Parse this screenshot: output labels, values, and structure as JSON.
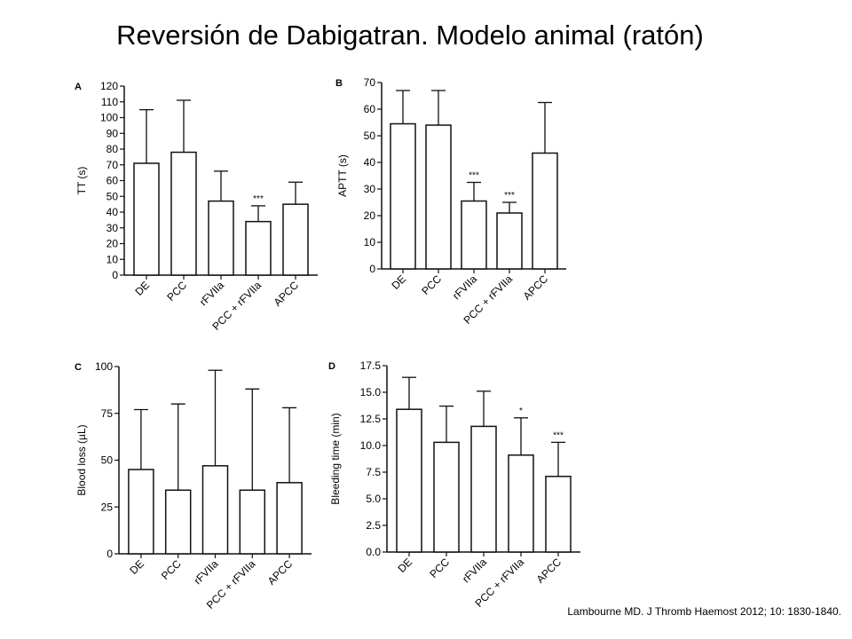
{
  "slide": {
    "title": "Reversión de Dabigatran. Modelo animal (ratón)",
    "citation": "Lambourne MD. J Thromb Haemost 2012; 10: 1830-1840."
  },
  "chart_data": [
    {
      "panel": "A",
      "type": "bar",
      "ylabel": "TT (s)",
      "xlabel": "",
      "ylim": [
        0,
        120
      ],
      "yticks": [
        0,
        10,
        20,
        30,
        40,
        50,
        60,
        70,
        80,
        90,
        100,
        110,
        120
      ],
      "categories": [
        "DE",
        "PCC",
        "rFVIIa",
        "PCC + rFVIIa",
        "APCC"
      ],
      "values": [
        71,
        78,
        47,
        34,
        45
      ],
      "errors": [
        105,
        111,
        66,
        44,
        59
      ],
      "annotations": [
        "",
        "",
        "",
        "***",
        ""
      ],
      "grid": false
    },
    {
      "panel": "B",
      "type": "bar",
      "ylabel": "APTT (s)",
      "xlabel": "",
      "ylim": [
        0,
        70
      ],
      "yticks": [
        0,
        10,
        20,
        30,
        40,
        50,
        60,
        70
      ],
      "categories": [
        "DE",
        "PCC",
        "rFVIIa",
        "PCC + rFVIIa",
        "APCC"
      ],
      "values": [
        54.5,
        54,
        25.5,
        21,
        43.5
      ],
      "errors": [
        67,
        67,
        32.5,
        25,
        62.5
      ],
      "annotations": [
        "",
        "",
        "***",
        "***",
        ""
      ],
      "grid": false
    },
    {
      "panel": "C",
      "type": "bar",
      "ylabel": "Blood loss (µL)",
      "xlabel": "",
      "ylim": [
        0,
        100
      ],
      "yticks": [
        0,
        25,
        50,
        75,
        100
      ],
      "categories": [
        "DE",
        "PCC",
        "rFVIIa",
        "PCC + rFVIIa",
        "APCC"
      ],
      "values": [
        45,
        34,
        47,
        34,
        38
      ],
      "errors": [
        77,
        80,
        98,
        88,
        78
      ],
      "annotations": [
        "",
        "",
        "",
        "",
        ""
      ],
      "grid": false
    },
    {
      "panel": "D",
      "type": "bar",
      "ylabel": "Bleeding time (min)",
      "xlabel": "",
      "ylim": [
        0,
        17.5
      ],
      "yticks": [
        "0.0",
        "2.5",
        "5.0",
        "7.5",
        "10.0",
        "12.5",
        "15.0",
        "17.5"
      ],
      "categories": [
        "DE",
        "PCC",
        "rFVIIa",
        "PCC + rFVIIa",
        "APCC"
      ],
      "values": [
        13.4,
        10.3,
        11.8,
        9.1,
        7.1
      ],
      "errors": [
        16.4,
        13.7,
        15.1,
        12.6,
        10.3
      ],
      "annotations": [
        "",
        "",
        "",
        "*",
        "***"
      ],
      "grid": false
    }
  ]
}
